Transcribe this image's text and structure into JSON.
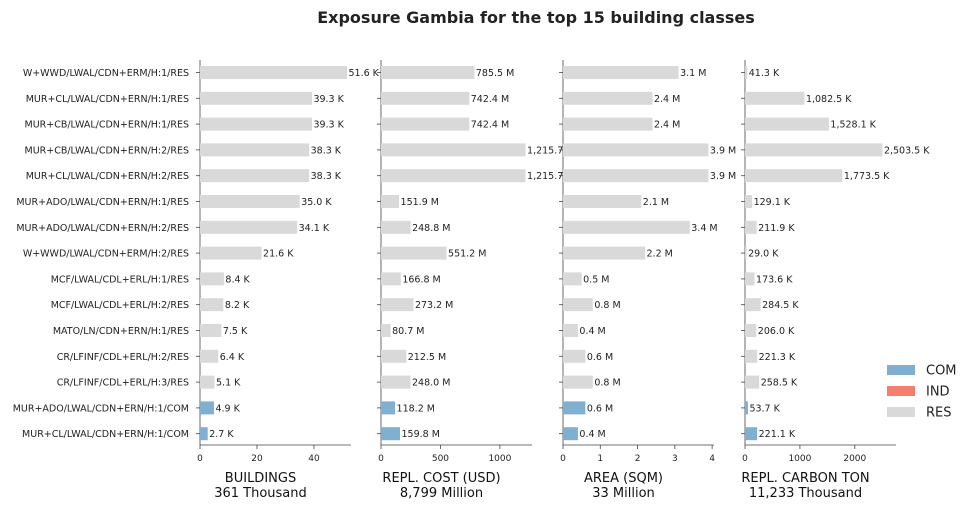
{
  "chart_data": {
    "type": "bar",
    "orientation": "horizontal",
    "title": "Exposure Gambia for the top 15 building classes",
    "categories": [
      "W+WWD/LWAL/CDN+ERM/H:1/RES",
      "MUR+CL/LWAL/CDN+ERN/H:1/RES",
      "MUR+CB/LWAL/CDN+ERN/H:1/RES",
      "MUR+CB/LWAL/CDN+ERN/H:2/RES",
      "MUR+CL/LWAL/CDN+ERN/H:2/RES",
      "MUR+ADO/LWAL/CDN+ERN/H:1/RES",
      "MUR+ADO/LWAL/CDN+ERN/H:2/RES",
      "W+WWD/LWAL/CDN+ERM/H:2/RES",
      "MCF/LWAL/CDL+ERL/H:1/RES",
      "MCF/LWAL/CDL+ERL/H:2/RES",
      "MATO/LN/CDN+ERN/H:1/RES",
      "CR/LFINF/CDL+ERL/H:2/RES",
      "CR/LFINF/CDL+ERL/H:3/RES",
      "MUR+ADO/LWAL/CDN+ERN/H:1/COM",
      "MUR+CL/LWAL/CDN+ERN/H:1/COM"
    ],
    "occupancy": [
      "RES",
      "RES",
      "RES",
      "RES",
      "RES",
      "RES",
      "RES",
      "RES",
      "RES",
      "RES",
      "RES",
      "RES",
      "RES",
      "COM",
      "COM"
    ],
    "legend": {
      "placement": "bottom-right",
      "items": [
        {
          "name": "COM",
          "color": "#7fb0d2"
        },
        {
          "name": "IND",
          "color": "#f47e70"
        },
        {
          "name": "RES",
          "color": "#d9d9d9"
        }
      ]
    },
    "panels": [
      {
        "xlabel": "BUILDINGS",
        "total": "361 Thousand",
        "xlim": [
          0,
          53
        ],
        "ticks": [
          0,
          20,
          40
        ],
        "tick_labels": [
          "0",
          "20",
          "40"
        ],
        "values": [
          51.6,
          39.3,
          39.3,
          38.3,
          38.3,
          35.0,
          34.1,
          21.6,
          8.4,
          8.2,
          7.5,
          6.4,
          5.1,
          4.9,
          2.7
        ],
        "labels": [
          "51.6 K",
          "39.3 K",
          "39.3 K",
          "38.3 K",
          "38.3 K",
          "35.0 K",
          "34.1 K",
          "21.6 K",
          "8.4 K",
          "8.2 K",
          "7.5 K",
          "6.4 K",
          "5.1 K",
          "4.9 K",
          "2.7 K"
        ]
      },
      {
        "xlabel": "REPL. COST (USD)",
        "total": "8,799 Million",
        "xlim": [
          0,
          1270
        ],
        "ticks": [
          0,
          500,
          1000
        ],
        "tick_labels": [
          "0",
          "500",
          "1000"
        ],
        "values": [
          785.5,
          742.4,
          742.4,
          1215.7,
          1215.7,
          151.9,
          248.8,
          551.2,
          166.8,
          273.2,
          80.7,
          212.5,
          248.0,
          118.2,
          159.8
        ],
        "labels": [
          "785.5 M",
          "742.4 M",
          "742.4 M",
          "1,215.7",
          "1,215.7",
          "151.9 M",
          "248.8 M",
          "551.2 M",
          "166.8 M",
          "273.2 M",
          "80.7 M",
          "212.5 M",
          "248.0 M",
          "118.2 M",
          "159.8 M"
        ]
      },
      {
        "xlabel": "AREA (SQM)",
        "total": "33 Million",
        "xlim": [
          0,
          4.05
        ],
        "ticks": [
          0,
          1,
          2,
          3,
          4
        ],
        "tick_labels": [
          "0",
          "1",
          "2",
          "3",
          "4"
        ],
        "values": [
          3.1,
          2.4,
          2.4,
          3.9,
          3.9,
          2.1,
          3.4,
          2.2,
          0.5,
          0.8,
          0.4,
          0.6,
          0.8,
          0.6,
          0.4
        ],
        "labels": [
          "3.1 M",
          "2.4 M",
          "2.4 M",
          "3.9 M",
          "3.9 M",
          "2.1 M",
          "3.4 M",
          "2.2 M",
          "0.5 M",
          "0.8 M",
          "0.4 M",
          "0.6 M",
          "0.8 M",
          "0.6 M",
          "0.4 M"
        ]
      },
      {
        "xlabel": "REPL. CARBON TON",
        "total": "11,233 Thousand",
        "xlim": [
          0,
          2750
        ],
        "ticks": [
          0,
          1000,
          2000
        ],
        "tick_labels": [
          "0",
          "1000",
          "2000"
        ],
        "values": [
          41.3,
          1082.5,
          1528.1,
          2503.5,
          1773.5,
          129.1,
          211.9,
          29.0,
          173.6,
          284.5,
          206.0,
          221.3,
          258.5,
          53.7,
          221.1
        ],
        "labels": [
          "41.3 K",
          "1,082.5 K",
          "1,528.1 K",
          "2,503.5 K",
          "1,773.5 K",
          "129.1 K",
          "211.9 K",
          "29.0 K",
          "173.6 K",
          "284.5 K",
          "206.0 K",
          "221.3 K",
          "258.5 K",
          "53.7 K",
          "221.1 K"
        ]
      }
    ]
  }
}
